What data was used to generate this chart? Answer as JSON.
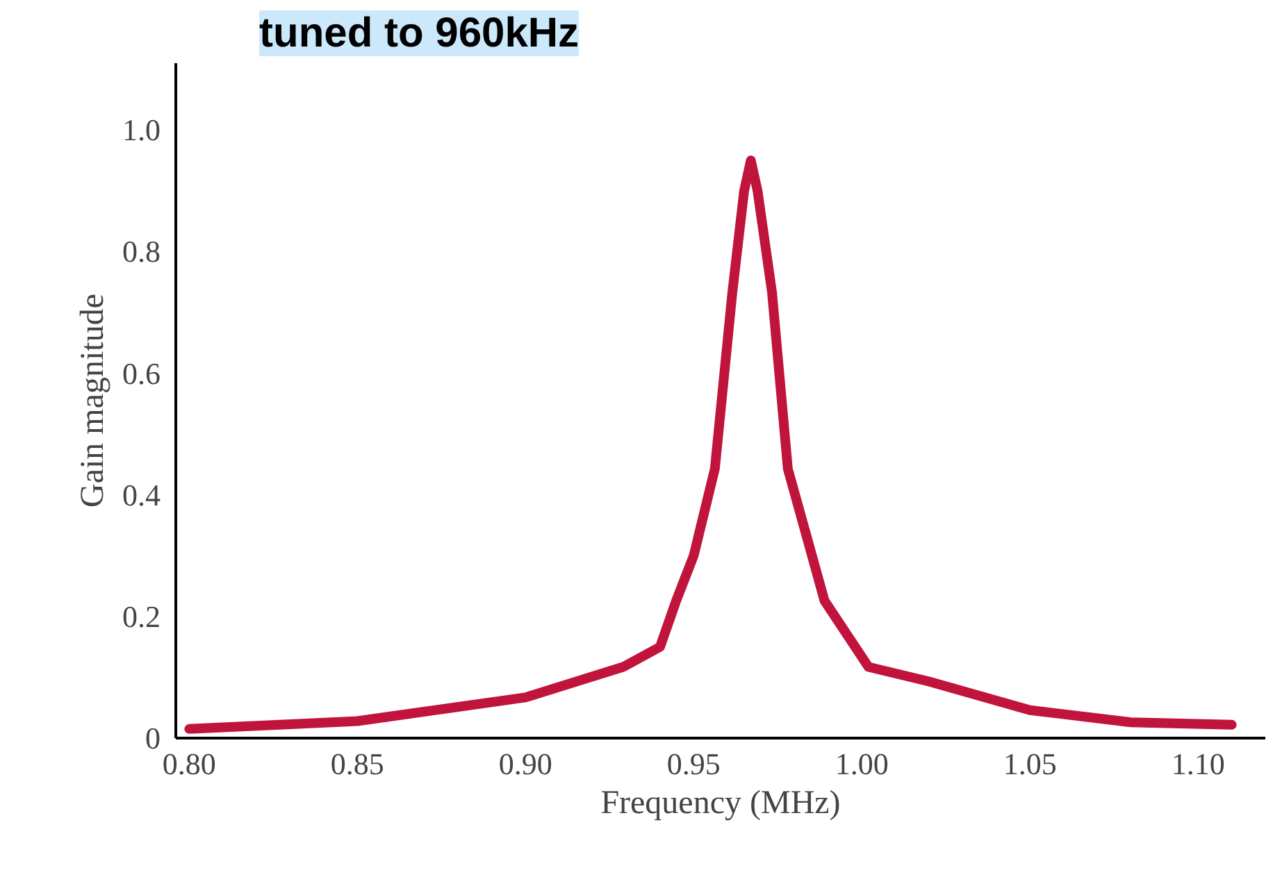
{
  "chart_data": {
    "type": "line",
    "title": "tuned to 960kHz",
    "xlabel": "Frequency (MHz)",
    "ylabel": "Gain magnitude",
    "x": [
      0.8,
      0.85,
      0.9,
      0.929,
      0.94,
      0.9448,
      0.95,
      0.9563,
      0.9615,
      0.965,
      0.967,
      0.969,
      0.9733,
      0.978,
      0.9889,
      1.002,
      1.02,
      1.05,
      1.08,
      1.11
    ],
    "series": [
      {
        "color": "#c0143c",
        "values": [
          0.015,
          0.028,
          0.067,
          0.117,
          0.15,
          0.226,
          0.3,
          0.443,
          0.733,
          0.9,
          0.95,
          0.9,
          0.733,
          0.443,
          0.226,
          0.117,
          0.093,
          0.046,
          0.026,
          0.022
        ]
      }
    ],
    "xlim": [
      0.796,
      1.12
    ],
    "ylim": [
      0,
      1.11
    ],
    "xticks": [
      {
        "value": 0.8,
        "label": "0.80"
      },
      {
        "value": 0.85,
        "label": "0.85"
      },
      {
        "value": 0.9,
        "label": "0.90"
      },
      {
        "value": 0.95,
        "label": "0.95"
      },
      {
        "value": 1.0,
        "label": "1.00"
      },
      {
        "value": 1.05,
        "label": "1.05"
      },
      {
        "value": 1.1,
        "label": "1.10"
      }
    ],
    "yticks": [
      0,
      {
        "value": 0.2,
        "label": "0.2"
      },
      {
        "value": 0.4,
        "label": "0.4"
      },
      {
        "value": 0.6,
        "label": "0.6"
      },
      {
        "value": 0.8,
        "label": "0.8"
      },
      {
        "value": 1.0,
        "label": "1.0"
      }
    ],
    "grid": false,
    "marker": "none",
    "line_style": "solid"
  }
}
